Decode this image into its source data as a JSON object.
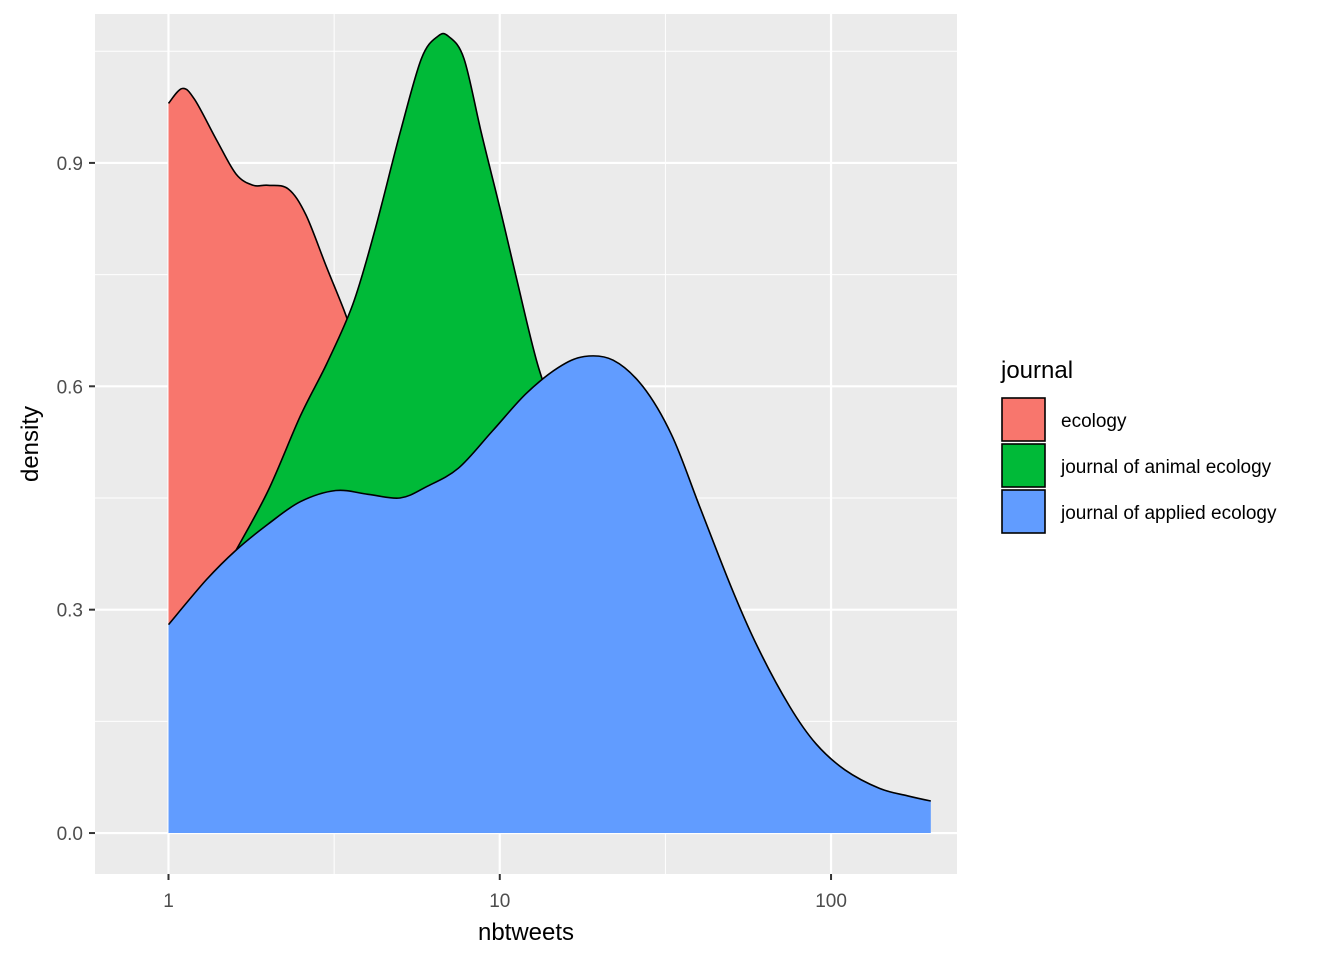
{
  "chart_data": {
    "type": "area",
    "subtype": "overlapping density",
    "xlabel": "nbtweets",
    "ylabel": "density",
    "x_scale": "log10",
    "xlim": [
      0.6,
      240
    ],
    "ylim": [
      -0.055,
      1.1
    ],
    "x_ticks": [
      {
        "value": 1,
        "label": "1"
      },
      {
        "value": 10,
        "label": "10"
      },
      {
        "value": 100,
        "label": "100"
      }
    ],
    "y_ticks": [
      {
        "value": 0.0,
        "label": "0.0"
      },
      {
        "value": 0.3,
        "label": "0.3"
      },
      {
        "value": 0.6,
        "label": "0.6"
      },
      {
        "value": 0.9,
        "label": "0.9"
      }
    ],
    "grid": true,
    "legend": {
      "title": "journal",
      "position": "right"
    },
    "series": [
      {
        "name": "ecology",
        "color": "#F8766D",
        "x": [
          1,
          1.1,
          1.2,
          1.4,
          1.6,
          1.8,
          2.0,
          2.3,
          2.6,
          3.0,
          3.4,
          3.8,
          4.3,
          5.0,
          6.0,
          7.0,
          8.5,
          10.0,
          12.0,
          14.0,
          17.0,
          20.0
        ],
        "y": [
          0.98,
          1.0,
          0.985,
          0.93,
          0.885,
          0.87,
          0.87,
          0.865,
          0.83,
          0.76,
          0.7,
          0.64,
          0.58,
          0.5,
          0.42,
          0.36,
          0.3,
          0.26,
          0.23,
          0.21,
          0.19,
          0.18
        ]
      },
      {
        "name": "journal of animal ecology",
        "color": "#00BA38",
        "x": [
          1.6,
          2.0,
          2.5,
          3.0,
          3.6,
          4.2,
          5.0,
          5.8,
          6.5,
          7.0,
          7.8,
          8.8,
          10.0,
          11.3,
          13.0,
          15.0,
          17.0,
          20.0
        ],
        "y": [
          0.38,
          0.46,
          0.56,
          0.63,
          0.71,
          0.81,
          0.94,
          1.04,
          1.07,
          1.07,
          1.04,
          0.94,
          0.84,
          0.74,
          0.63,
          0.55,
          0.49,
          0.45
        ]
      },
      {
        "name": "journal of applied ecology",
        "color": "#619CFF",
        "x": [
          1,
          1.3,
          1.6,
          2.0,
          2.5,
          3.2,
          4.0,
          5.0,
          6.0,
          7.5,
          9.5,
          12.0,
          15.0,
          18.0,
          22.0,
          27.0,
          33.0,
          40.0,
          50.0,
          60.0,
          75.0,
          90.0,
          110.0,
          140.0,
          170.0,
          200.0
        ],
        "y": [
          0.28,
          0.34,
          0.38,
          0.415,
          0.445,
          0.46,
          0.455,
          0.45,
          0.465,
          0.49,
          0.54,
          0.59,
          0.625,
          0.64,
          0.635,
          0.6,
          0.535,
          0.44,
          0.33,
          0.25,
          0.17,
          0.12,
          0.085,
          0.06,
          0.05,
          0.043
        ]
      }
    ]
  }
}
